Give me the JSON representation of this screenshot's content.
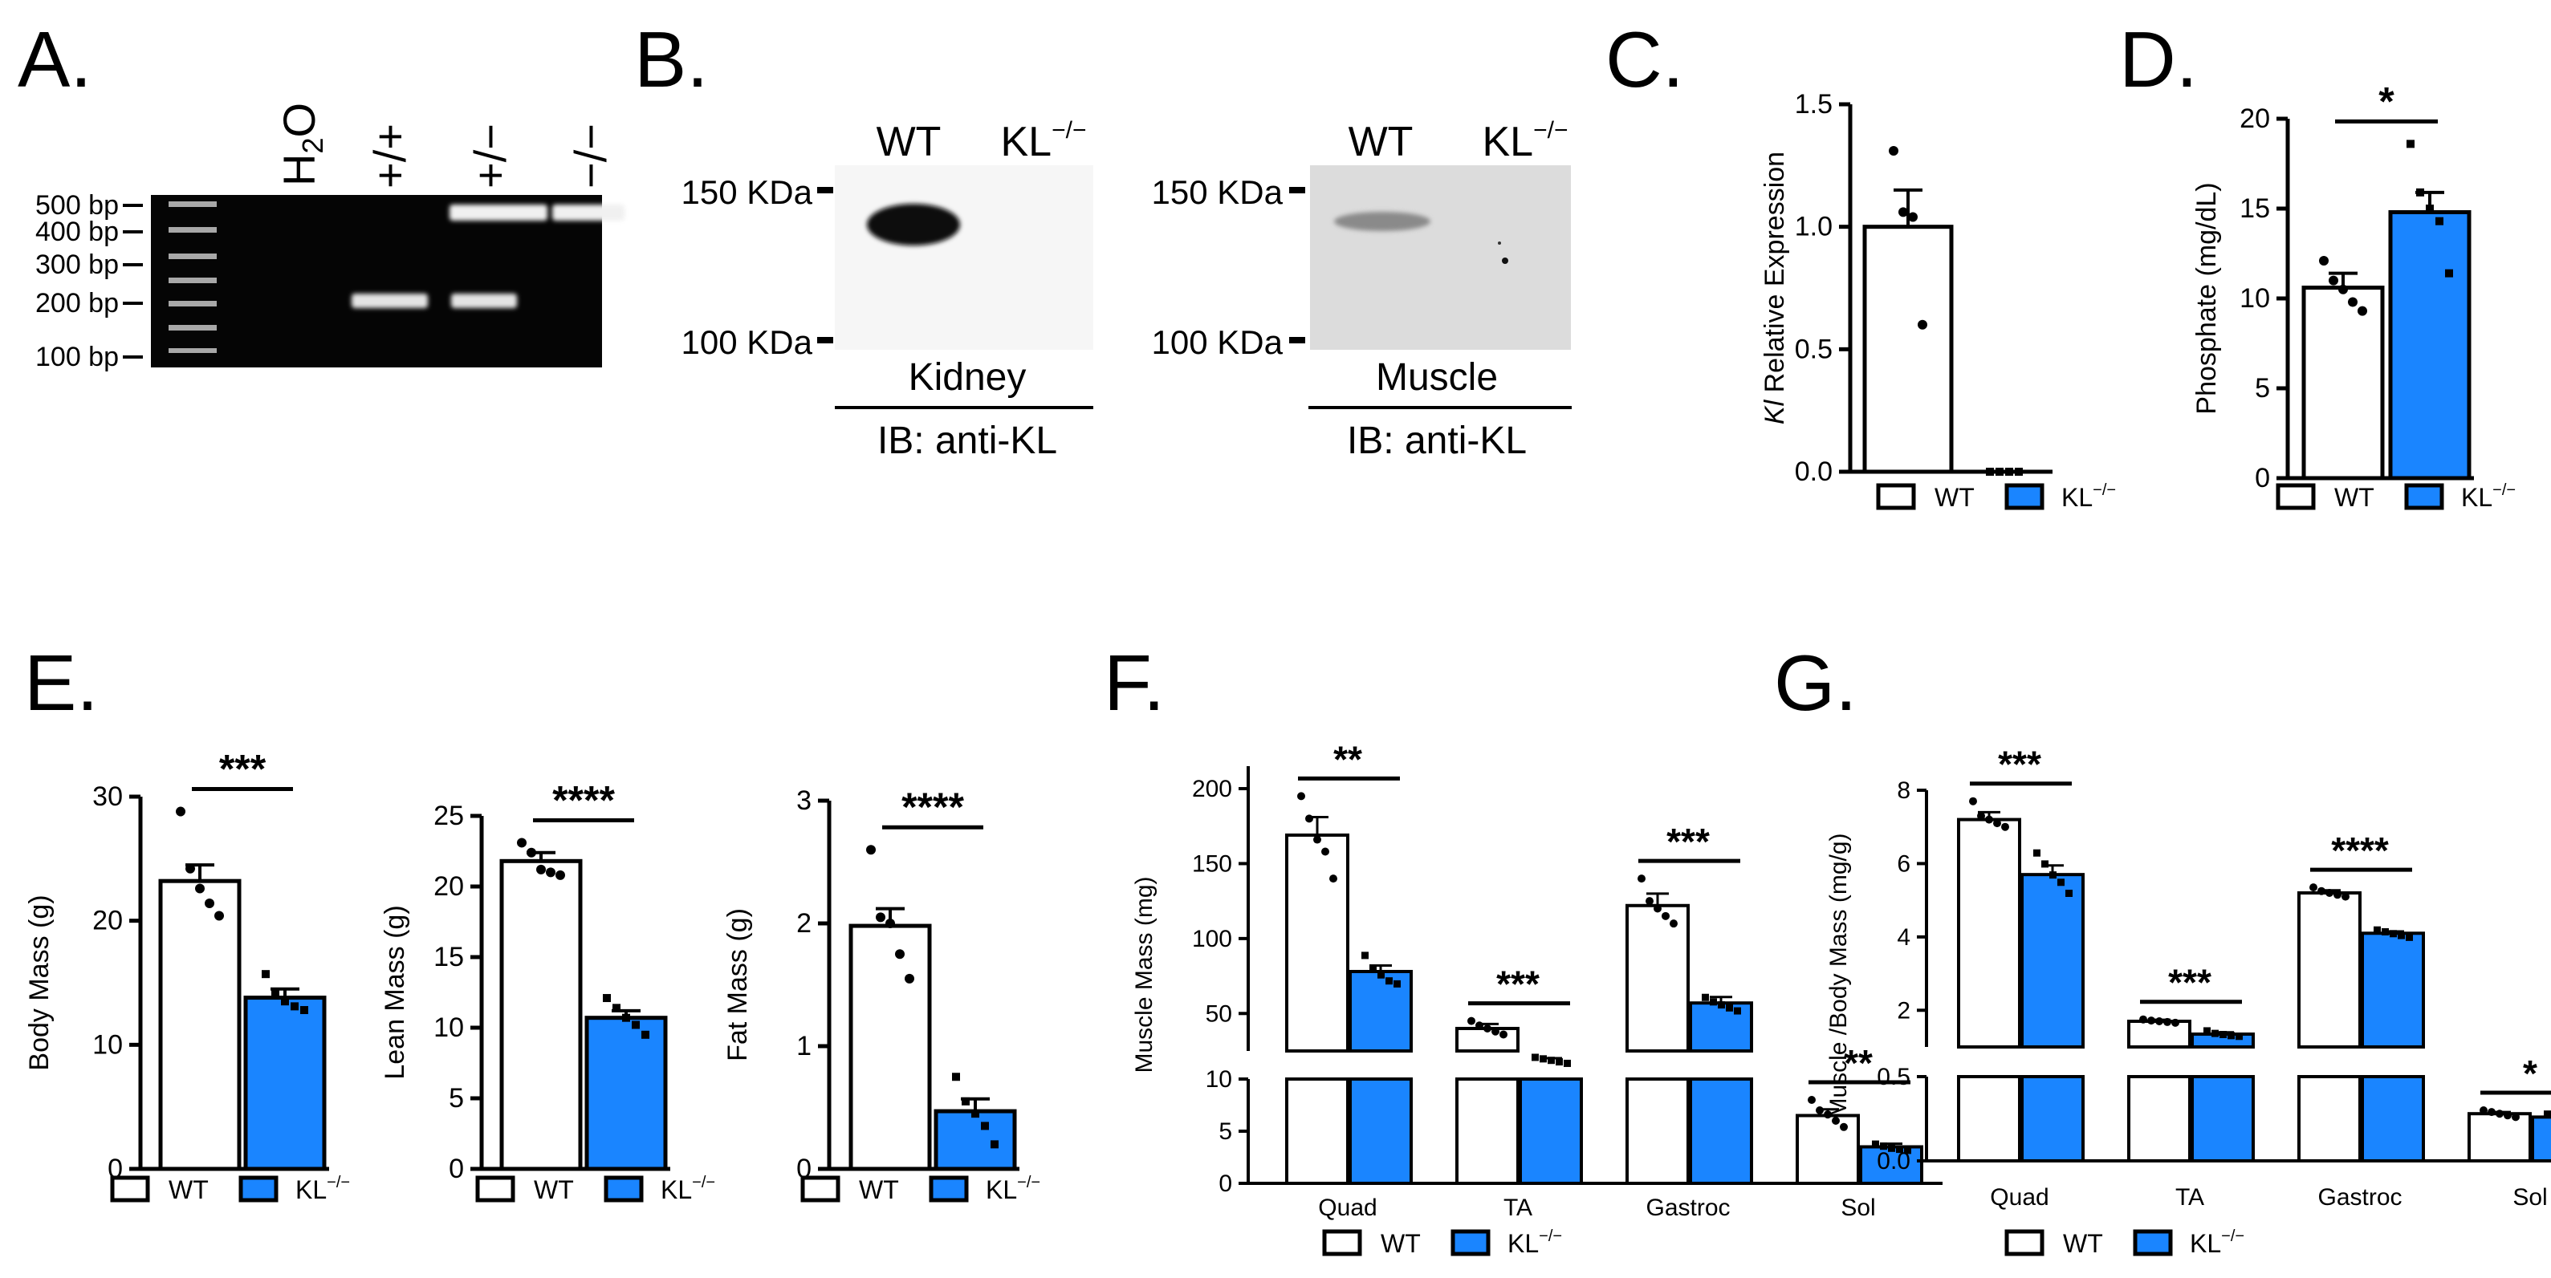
{
  "colors": {
    "wt_fill": "#ffffff",
    "ko_fill": "#1a85ff",
    "stroke": "#000000",
    "gel_bg": "#050505",
    "ladder": "#a8a8a8",
    "band": "#e8e8e8",
    "blot_bg": "#f3f3f3",
    "muscle_bg": "#dedede"
  },
  "legend": {
    "wt": "WT",
    "ko": "KL",
    "ko_sup": "−/−"
  },
  "panels": {
    "A": {
      "label": "A.",
      "lanes": [
        {
          "main": "H",
          "sub": "2",
          "tail": "O"
        },
        {
          "main": "+/+"
        },
        {
          "main": "+/−"
        },
        {
          "main": "−/−"
        }
      ],
      "ladder_labels": [
        "500 bp",
        "400 bp",
        "300 bp",
        "200 bp",
        "100 bp"
      ],
      "bands_bp": [
        [],
        [
          200
        ],
        [
          500,
          200
        ],
        [
          500
        ]
      ]
    },
    "B": {
      "label": "B.",
      "blots": [
        {
          "lane1": "WT",
          "lane2": "KL",
          "lane2_sup": "−/−",
          "marker_high": "150 KDa",
          "marker_low": "100 KDa",
          "tissue": "Kidney",
          "ib": "IB: anti-KL"
        },
        {
          "lane1": "WT",
          "lane2": "KL",
          "lane2_sup": "−/−",
          "marker_high": "150 KDa",
          "marker_low": "100 KDa",
          "tissue": "Muscle",
          "ib": "IB: anti-KL"
        }
      ]
    },
    "C": {
      "label": "C."
    },
    "D": {
      "label": "D."
    },
    "E": {
      "label": "E."
    },
    "F": {
      "label": "F."
    },
    "G": {
      "label": "G."
    }
  },
  "chart_data": [
    {
      "id": "C",
      "type": "bar",
      "ylabel_italic": "Kl",
      "ylabel": " Relative Expression",
      "ylim": [
        0,
        1.5
      ],
      "ticks": [
        0.0,
        0.5,
        1.0,
        1.5
      ],
      "tick_labels": [
        "0.0",
        "0.5",
        "1.0",
        "1.5"
      ],
      "groups": [
        {
          "name": "",
          "wt": 1.0,
          "ko": 0.0,
          "wt_err": 0.15,
          "ko_err": 0.0,
          "wt_pts": [
            1.31,
            1.06,
            1.04,
            0.6
          ],
          "ko_pts": [
            0,
            0,
            0,
            0
          ],
          "sig": ""
        }
      ]
    },
    {
      "id": "D",
      "type": "bar",
      "ylabel": "Phosphate (mg/dL)",
      "ylim": [
        0,
        20
      ],
      "ticks": [
        0,
        5,
        10,
        15,
        20
      ],
      "tick_labels": [
        "0",
        "5",
        "10",
        "15",
        "20"
      ],
      "groups": [
        {
          "name": "",
          "wt": 10.6,
          "ko": 14.8,
          "wt_err": 0.8,
          "ko_err": 1.1,
          "wt_pts": [
            12.1,
            11.0,
            10.5,
            9.8,
            9.3
          ],
          "ko_pts": [
            18.6,
            15.9,
            15.0,
            14.3,
            11.4
          ],
          "sig": "*"
        }
      ]
    },
    {
      "id": "E1",
      "type": "bar",
      "ylabel": "Body Mass (g)",
      "ylim": [
        0,
        30
      ],
      "ticks": [
        0,
        10,
        20,
        30
      ],
      "tick_labels": [
        "0",
        "10",
        "20",
        "30"
      ],
      "groups": [
        {
          "name": "",
          "wt": 23.2,
          "ko": 13.8,
          "wt_err": 1.3,
          "ko_err": 0.7,
          "wt_pts": [
            28.8,
            24.2,
            22.6,
            21.4,
            20.4
          ],
          "ko_pts": [
            15.7,
            14.2,
            13.5,
            13.1,
            12.8
          ],
          "sig": "***"
        }
      ]
    },
    {
      "id": "E2",
      "type": "bar",
      "ylabel": "Lean Mass (g)",
      "ylim": [
        0,
        25
      ],
      "ticks": [
        0,
        5,
        10,
        15,
        20,
        25
      ],
      "tick_labels": [
        "0",
        "5",
        "10",
        "15",
        "20",
        "25"
      ],
      "groups": [
        {
          "name": "",
          "wt": 21.8,
          "ko": 10.7,
          "wt_err": 0.6,
          "ko_err": 0.5,
          "wt_pts": [
            23.1,
            22.4,
            21.2,
            21.0,
            20.8
          ],
          "ko_pts": [
            12.1,
            11.4,
            10.7,
            10.2,
            9.5
          ],
          "sig": "****"
        }
      ]
    },
    {
      "id": "E3",
      "type": "bar",
      "ylabel": "Fat Mass (g)",
      "ylim": [
        0,
        3
      ],
      "ticks": [
        0,
        1,
        2,
        3
      ],
      "tick_labels": [
        "0",
        "1",
        "2",
        "3"
      ],
      "groups": [
        {
          "name": "",
          "wt": 1.98,
          "ko": 0.47,
          "wt_err": 0.14,
          "ko_err": 0.1,
          "wt_pts": [
            2.6,
            2.05,
            2.0,
            1.75,
            1.55
          ],
          "ko_pts": [
            0.75,
            0.55,
            0.45,
            0.35,
            0.2
          ],
          "sig": "****"
        }
      ]
    },
    {
      "id": "F",
      "type": "bar",
      "broken_axis": true,
      "ylabel": "Muscle Mass (mg)",
      "lower": {
        "ylim": [
          0,
          10
        ],
        "ticks": [
          0,
          5,
          10
        ],
        "tick_labels": [
          "0",
          "5",
          "10"
        ]
      },
      "upper": {
        "ylim": [
          25,
          215
        ],
        "ticks": [
          50,
          100,
          150,
          200
        ],
        "tick_labels": [
          "50",
          "100",
          "150",
          "200"
        ]
      },
      "groups": [
        {
          "name": "Quad",
          "wt": 169,
          "ko": 78,
          "wt_err": 12,
          "ko_err": 4,
          "wt_pts": [
            195,
            180,
            166,
            158,
            140
          ],
          "ko_pts": [
            89,
            80,
            76,
            72,
            70
          ],
          "sig": "**"
        },
        {
          "name": "TA",
          "wt": 40,
          "ko": 19,
          "wt_err": 3,
          "ko_err": 1.2,
          "wt_pts": [
            45,
            42,
            40,
            38,
            36
          ],
          "ko_pts": [
            21,
            20,
            19,
            18,
            17
          ],
          "sig": "***"
        },
        {
          "name": "Gastroc",
          "wt": 122,
          "ko": 57,
          "wt_err": 8,
          "ko_err": 4,
          "wt_pts": [
            140,
            125,
            120,
            115,
            110
          ],
          "ko_pts": [
            61,
            58,
            56,
            54,
            52
          ],
          "sig": "***"
        },
        {
          "name": "Sol",
          "wt": 6.5,
          "ko": 3.5,
          "wt_err": 0.6,
          "ko_err": 0.3,
          "wt_pts": [
            8.0,
            7.0,
            6.6,
            6.0,
            5.4
          ],
          "ko_pts": [
            3.8,
            3.6,
            3.4,
            3.3,
            3.2
          ],
          "sig": "**"
        }
      ]
    },
    {
      "id": "G",
      "type": "bar",
      "broken_axis": true,
      "ylabel": "Muscle /Body Mass (mg/g)",
      "lower": {
        "ylim": [
          0,
          0.5
        ],
        "ticks": [
          0.0,
          0.5
        ],
        "tick_labels": [
          "0.0",
          "0.5"
        ]
      },
      "upper": {
        "ylim": [
          1,
          8
        ],
        "ticks": [
          2,
          4,
          6,
          8
        ],
        "tick_labels": [
          "2",
          "4",
          "6",
          "8"
        ]
      },
      "groups": [
        {
          "name": "Quad",
          "wt": 7.2,
          "ko": 5.7,
          "wt_err": 0.2,
          "ko_err": 0.25,
          "wt_pts": [
            7.7,
            7.3,
            7.2,
            7.1,
            7.0
          ],
          "ko_pts": [
            6.3,
            6.0,
            5.7,
            5.5,
            5.2
          ],
          "sig": "***"
        },
        {
          "name": "TA",
          "wt": 1.7,
          "ko": 1.35,
          "wt_err": 0.04,
          "ko_err": 0.05,
          "wt_pts": [
            1.75,
            1.72,
            1.7,
            1.68,
            1.66
          ],
          "ko_pts": [
            1.45,
            1.38,
            1.35,
            1.32,
            1.3
          ],
          "sig": "***"
        },
        {
          "name": "Gastroc",
          "wt": 5.2,
          "ko": 4.1,
          "wt_err": 0.07,
          "ko_err": 0.05,
          "wt_pts": [
            5.35,
            5.25,
            5.2,
            5.15,
            5.1
          ],
          "ko_pts": [
            4.2,
            4.15,
            4.1,
            4.05,
            4.0
          ],
          "sig": "****"
        },
        {
          "name": "Sol",
          "wt": 0.28,
          "ko": 0.26,
          "wt_err": 0.01,
          "ko_err": 0.01,
          "wt_pts": [
            0.3,
            0.29,
            0.28,
            0.27,
            0.26
          ],
          "ko_pts": [
            0.28,
            0.27,
            0.26,
            0.25,
            0.24
          ],
          "sig": "*"
        }
      ]
    }
  ]
}
